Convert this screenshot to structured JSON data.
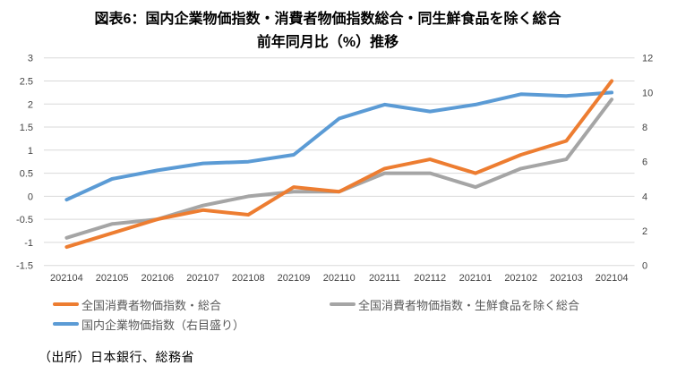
{
  "figure": {
    "title_line1": "図表6：国内企業物価指数・消費者物価指数総合・同生鮮食品を除く総合",
    "title_line2": "前年同月比（%）推移",
    "source": "（出所）日本銀行、総務省"
  },
  "colors": {
    "cpi_total": "#ED7D31",
    "cpi_ex_fresh_food": "#A5A5A5",
    "cgpi": "#5B9BD5",
    "gridline": "#D9D9D9",
    "axis_text": "#444444"
  },
  "chart_data": {
    "type": "line",
    "title": "図表6：国内企業物価指数・消費者物価指数総合・同生鮮食品を除く総合 前年同月比（%）推移",
    "categories": [
      "202104",
      "202105",
      "202106",
      "202107",
      "202108",
      "202109",
      "202110",
      "202111",
      "202112",
      "202101",
      "202102",
      "202103",
      "202104"
    ],
    "series": [
      {
        "name": "全国消費者物価指数・総合",
        "axis": "left",
        "color": "#ED7D31",
        "values": [
          -1.1,
          -0.8,
          -0.5,
          -0.3,
          -0.4,
          0.2,
          0.1,
          0.6,
          0.8,
          0.5,
          0.9,
          1.2,
          2.5
        ]
      },
      {
        "name": "全国消費者物価指数・生鮮食品を除く総合",
        "axis": "left",
        "color": "#A5A5A5",
        "values": [
          -0.9,
          -0.6,
          -0.5,
          -0.2,
          0.0,
          0.1,
          0.1,
          0.5,
          0.5,
          0.2,
          0.6,
          0.8,
          2.1
        ]
      },
      {
        "name": "国内企業物価指数（右目盛り）",
        "axis": "right",
        "color": "#5B9BD5",
        "values": [
          3.8,
          5.0,
          5.5,
          5.9,
          6.0,
          6.4,
          8.5,
          9.3,
          8.9,
          9.3,
          9.9,
          9.8,
          10.0
        ]
      }
    ],
    "left_axis": {
      "min": -1.5,
      "max": 3,
      "step": 0.5,
      "ticks": [
        "3",
        "2.5",
        "2",
        "1.5",
        "1",
        "0.5",
        "0",
        "-0.5",
        "-1",
        "-1.5"
      ]
    },
    "right_axis": {
      "min": 0,
      "max": 12,
      "step": 2,
      "ticks": [
        "12",
        "10",
        "8",
        "6",
        "4",
        "2",
        "0"
      ]
    },
    "grid": true,
    "legend_position": "bottom-left"
  }
}
